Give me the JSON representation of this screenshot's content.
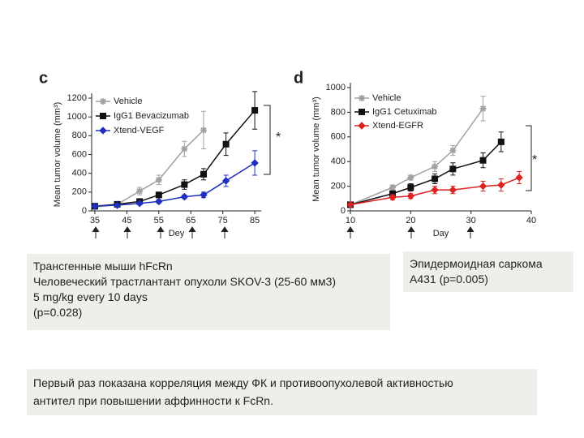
{
  "chart_data": [
    {
      "type": "line",
      "panel": "c",
      "ylabel": "Mean tumor volume (mm³)",
      "xlabel": "Dey",
      "xlim": [
        34,
        87
      ],
      "xticks": [
        35,
        45,
        55,
        65,
        75,
        85
      ],
      "ylim": [
        0,
        1200
      ],
      "yticks": [
        0,
        200,
        400,
        600,
        800,
        1000,
        1200
      ],
      "annotation": "*",
      "series": [
        {
          "name": "Vehicle",
          "color": "#a0a0a0",
          "marker": "star",
          "x": [
            35,
            42,
            49,
            55,
            63,
            69
          ],
          "values": [
            40,
            70,
            210,
            330,
            660,
            860
          ],
          "errors": [
            10,
            20,
            40,
            50,
            80,
            200
          ]
        },
        {
          "name": "IgG1 Bevacizumab",
          "color": "#111111",
          "marker": "square",
          "x": [
            35,
            42,
            49,
            55,
            63,
            69,
            76,
            85
          ],
          "values": [
            50,
            70,
            100,
            170,
            280,
            390,
            710,
            1070
          ],
          "errors": [
            10,
            10,
            20,
            30,
            50,
            60,
            120,
            200
          ]
        },
        {
          "name": "Xtend-VEGF",
          "color": "#1f2fbf",
          "marker": "diamond",
          "x": [
            35,
            42,
            49,
            55,
            63,
            69,
            76,
            85
          ],
          "values": [
            50,
            60,
            80,
            100,
            150,
            170,
            320,
            510
          ],
          "errors": [
            10,
            10,
            10,
            20,
            20,
            30,
            60,
            130
          ]
        }
      ]
    },
    {
      "type": "line",
      "panel": "d",
      "ylabel": "Mean tumor volume (mm³)",
      "xlabel": "Day",
      "xlim": [
        10,
        40
      ],
      "xticks": [
        10,
        20,
        30,
        40
      ],
      "ylim": [
        0,
        1000
      ],
      "yticks": [
        0,
        200,
        400,
        600,
        800,
        1000
      ],
      "annotation": "*",
      "series": [
        {
          "name": "Vehicle",
          "color": "#a0a0a0",
          "marker": "star",
          "x": [
            10,
            17,
            20,
            24,
            27,
            32
          ],
          "values": [
            50,
            190,
            270,
            360,
            490,
            830
          ],
          "errors": [
            10,
            20,
            20,
            40,
            40,
            100
          ]
        },
        {
          "name": "IgG1 Cetuximab",
          "color": "#111111",
          "marker": "square",
          "x": [
            10,
            17,
            20,
            24,
            27,
            32,
            35
          ],
          "values": [
            50,
            140,
            190,
            260,
            340,
            410,
            560
          ],
          "errors": [
            10,
            20,
            30,
            40,
            50,
            60,
            80
          ]
        },
        {
          "name": "Xtend-EGFR",
          "color": "#dd2222",
          "marker": "diamond",
          "x": [
            10,
            17,
            20,
            24,
            27,
            32,
            35,
            38
          ],
          "values": [
            50,
            110,
            120,
            170,
            170,
            200,
            210,
            270
          ],
          "errors": [
            10,
            20,
            20,
            30,
            30,
            40,
            50,
            50
          ]
        }
      ]
    }
  ],
  "text_boxes": [
    {
      "lines": [
        "Трансгенные мыши hFcRn",
        "Человеческий трастлантант опухоли SKOV-3 (25-60 мм3)",
        "5 mg/kg every 10 days",
        "(p=0.028)"
      ]
    },
    {
      "lines": [
        "Эпидермоидная саркома",
        "A431 (p=0.005)"
      ]
    },
    {
      "lines": [
        "Первый раз показана корреляция между ФК и противоопухолевой активностью",
        "антител при повышении аффинности к FcRn."
      ]
    }
  ]
}
